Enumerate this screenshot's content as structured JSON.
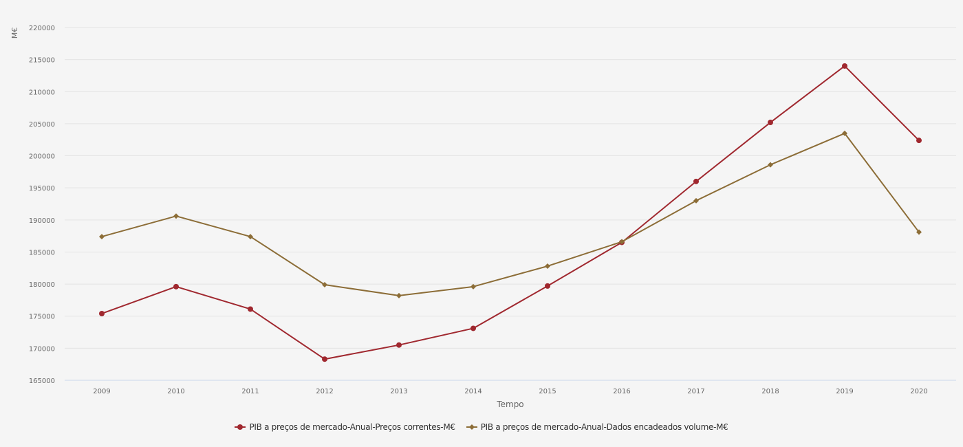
{
  "chart_data": {
    "type": "line",
    "title": "",
    "xlabel": "Tempo",
    "ylabel": "M€",
    "ylim": [
      165000,
      220000
    ],
    "yticks": [
      165000,
      170000,
      175000,
      180000,
      185000,
      190000,
      195000,
      200000,
      205000,
      210000,
      215000,
      220000
    ],
    "ytick_labels": [
      "165000",
      "170000",
      "175000",
      "180000",
      "185000",
      "190000",
      "195000",
      "200000",
      "205000",
      "210000",
      "215000",
      "220000"
    ],
    "categories": [
      "2009",
      "2010",
      "2011",
      "2012",
      "2013",
      "2014",
      "2015",
      "2016",
      "2017",
      "2018",
      "2019",
      "2020"
    ],
    "grid": true,
    "legend_position": "bottom-center",
    "series": [
      {
        "name": "PIB a preços de mercado-Anual-Preços correntes-M€",
        "color": "#a0282f",
        "marker": "circle",
        "values": [
          175400,
          179600,
          176100,
          168300,
          170500,
          173100,
          179700,
          186500,
          196000,
          205200,
          214000,
          202400
        ]
      },
      {
        "name": "PIB a preços de mercado-Anual-Dados encadeados volume-M€",
        "color": "#8c6d37",
        "marker": "diamond",
        "values": [
          187400,
          190600,
          187400,
          179900,
          178200,
          179600,
          182800,
          186600,
          193000,
          198600,
          203500,
          188100
        ]
      }
    ]
  }
}
